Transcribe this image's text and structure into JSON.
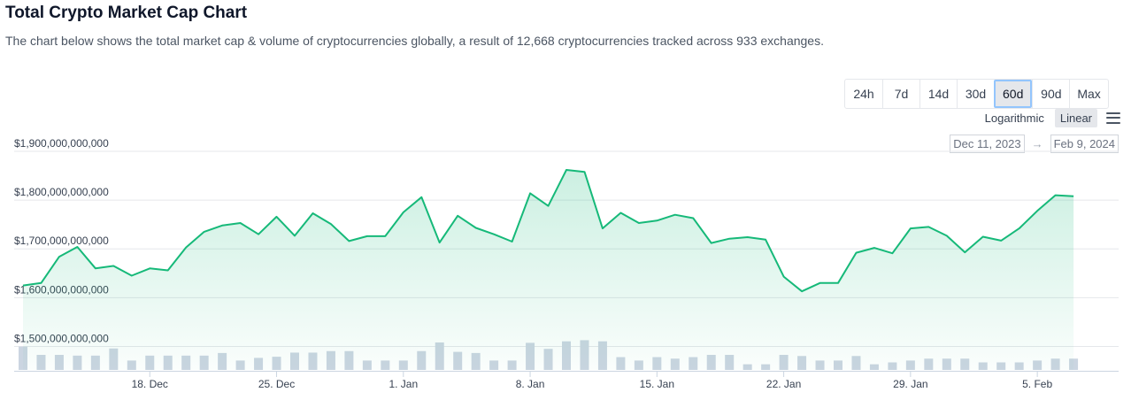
{
  "header": {
    "title": "Total Crypto Market Cap Chart",
    "description": "The chart below shows the total market cap & volume of cryptocurrencies globally, a result of 12,668 cryptocurrencies tracked across 933 exchanges."
  },
  "range_buttons": [
    "24h",
    "7d",
    "14d",
    "30d",
    "60d",
    "90d",
    "Max"
  ],
  "active_range": "60d",
  "scale_options": {
    "log": "Logarithmic",
    "linear": "Linear",
    "active": "Linear"
  },
  "date_range": {
    "from": "Dec 11, 2023",
    "arrow": "→",
    "to": "Feb 9, 2024"
  },
  "colors": {
    "line": "#16b979",
    "volume": "#cbd5e1",
    "grid": "#e5e7eb",
    "active_border": "#93c5fd"
  },
  "chart_data": {
    "type": "area",
    "title": "",
    "xlabel": "",
    "ylabel": "",
    "x_start": "2023-12-11",
    "x_end": "2024-02-09",
    "ylim": [
      1450000000000,
      1920000000000
    ],
    "y_ticks": [
      1500000000000,
      1600000000000,
      1700000000000,
      1800000000000,
      1900000000000
    ],
    "y_tick_labels": [
      "$1,500,000,000,000",
      "$1,600,000,000,000",
      "$1,700,000,000,000",
      "$1,800,000,000,000",
      "$1,900,000,000,000"
    ],
    "x_ticks": [
      "2023-12-18",
      "2023-12-25",
      "2024-01-01",
      "2024-01-08",
      "2024-01-15",
      "2024-01-22",
      "2024-01-29",
      "2024-02-05"
    ],
    "x_tick_labels": [
      "18. Dec",
      "25. Dec",
      "1. Jan",
      "8. Jan",
      "15. Jan",
      "22. Jan",
      "29. Jan",
      "5. Feb"
    ],
    "grid": true,
    "series": [
      {
        "values": [
          [
            "2023-12-11",
            1625000000000
          ],
          [
            "2023-12-12",
            1630000000000
          ],
          [
            "2023-12-13",
            1684000000000
          ],
          [
            "2023-12-14",
            1704000000000
          ],
          [
            "2023-12-15",
            1660000000000
          ],
          [
            "2023-12-16",
            1665000000000
          ],
          [
            "2023-12-17",
            1645000000000
          ],
          [
            "2023-12-18",
            1660000000000
          ],
          [
            "2023-12-19",
            1656000000000
          ],
          [
            "2023-12-20",
            1703000000000
          ],
          [
            "2023-12-21",
            1735000000000
          ],
          [
            "2023-12-22",
            1748000000000
          ],
          [
            "2023-12-23",
            1753000000000
          ],
          [
            "2023-12-24",
            1730000000000
          ],
          [
            "2023-12-25",
            1766000000000
          ],
          [
            "2023-12-26",
            1727000000000
          ],
          [
            "2023-12-27",
            1773000000000
          ],
          [
            "2023-12-28",
            1751000000000
          ],
          [
            "2023-12-29",
            1716000000000
          ],
          [
            "2023-12-30",
            1726000000000
          ],
          [
            "2023-12-31",
            1726000000000
          ],
          [
            "2024-01-01",
            1775000000000
          ],
          [
            "2024-01-02",
            1806000000000
          ],
          [
            "2024-01-03",
            1713000000000
          ],
          [
            "2024-01-04",
            1768000000000
          ],
          [
            "2024-01-05",
            1743000000000
          ],
          [
            "2024-01-06",
            1730000000000
          ],
          [
            "2024-01-07",
            1715000000000
          ],
          [
            "2024-01-08",
            1814000000000
          ],
          [
            "2024-01-09",
            1788000000000
          ],
          [
            "2024-01-10",
            1862000000000
          ],
          [
            "2024-01-11",
            1858000000000
          ],
          [
            "2024-01-12",
            1742000000000
          ],
          [
            "2024-01-13",
            1774000000000
          ],
          [
            "2024-01-14",
            1753000000000
          ],
          [
            "2024-01-15",
            1758000000000
          ],
          [
            "2024-01-16",
            1770000000000
          ],
          [
            "2024-01-17",
            1763000000000
          ],
          [
            "2024-01-18",
            1712000000000
          ],
          [
            "2024-01-19",
            1721000000000
          ],
          [
            "2024-01-20",
            1724000000000
          ],
          [
            "2024-01-21",
            1719000000000
          ],
          [
            "2024-01-22",
            1643000000000
          ],
          [
            "2024-01-23",
            1613000000000
          ],
          [
            "2024-01-24",
            1630000000000
          ],
          [
            "2024-01-25",
            1630000000000
          ],
          [
            "2024-01-26",
            1692000000000
          ],
          [
            "2024-01-27",
            1702000000000
          ],
          [
            "2024-01-28",
            1691000000000
          ],
          [
            "2024-01-29",
            1742000000000
          ],
          [
            "2024-01-30",
            1745000000000
          ],
          [
            "2024-01-31",
            1727000000000
          ],
          [
            "2024-02-01",
            1693000000000
          ],
          [
            "2024-02-02",
            1725000000000
          ],
          [
            "2024-02-03",
            1717000000000
          ],
          [
            "2024-02-04",
            1742000000000
          ],
          [
            "2024-02-05",
            1778000000000
          ],
          [
            "2024-02-06",
            1810000000000
          ],
          [
            "2024-02-07",
            1808000000000
          ]
        ]
      }
    ],
    "volume": [
      [
        "2023-12-11",
        62
      ],
      [
        "2023-12-12",
        40
      ],
      [
        "2023-12-13",
        40
      ],
      [
        "2023-12-14",
        38
      ],
      [
        "2023-12-15",
        38
      ],
      [
        "2023-12-16",
        57
      ],
      [
        "2023-12-17",
        25
      ],
      [
        "2023-12-18",
        38
      ],
      [
        "2023-12-19",
        38
      ],
      [
        "2023-12-20",
        38
      ],
      [
        "2023-12-21",
        38
      ],
      [
        "2023-12-22",
        45
      ],
      [
        "2023-12-23",
        25
      ],
      [
        "2023-12-24",
        32
      ],
      [
        "2023-12-25",
        35
      ],
      [
        "2023-12-26",
        46
      ],
      [
        "2023-12-27",
        46
      ],
      [
        "2023-12-28",
        50
      ],
      [
        "2023-12-29",
        50
      ],
      [
        "2023-12-30",
        25
      ],
      [
        "2023-12-31",
        25
      ],
      [
        "2024-01-01",
        25
      ],
      [
        "2024-01-02",
        50
      ],
      [
        "2024-01-03",
        73
      ],
      [
        "2024-01-04",
        48
      ],
      [
        "2024-01-05",
        45
      ],
      [
        "2024-01-06",
        25
      ],
      [
        "2024-01-07",
        25
      ],
      [
        "2024-01-08",
        72
      ],
      [
        "2024-01-09",
        56
      ],
      [
        "2024-01-10",
        76
      ],
      [
        "2024-01-11",
        79
      ],
      [
        "2024-01-12",
        76
      ],
      [
        "2024-01-13",
        34
      ],
      [
        "2024-01-14",
        25
      ],
      [
        "2024-01-15",
        34
      ],
      [
        "2024-01-16",
        30
      ],
      [
        "2024-01-17",
        34
      ],
      [
        "2024-01-18",
        40
      ],
      [
        "2024-01-19",
        40
      ],
      [
        "2024-01-20",
        15
      ],
      [
        "2024-01-21",
        15
      ],
      [
        "2024-01-22",
        40
      ],
      [
        "2024-01-23",
        37
      ],
      [
        "2024-01-24",
        25
      ],
      [
        "2024-01-25",
        25
      ],
      [
        "2024-01-26",
        37
      ],
      [
        "2024-01-27",
        15
      ],
      [
        "2024-01-28",
        20
      ],
      [
        "2024-01-29",
        25
      ],
      [
        "2024-01-30",
        30
      ],
      [
        "2024-01-31",
        30
      ],
      [
        "2024-02-01",
        30
      ],
      [
        "2024-02-02",
        20
      ],
      [
        "2024-02-03",
        20
      ],
      [
        "2024-02-04",
        20
      ],
      [
        "2024-02-05",
        25
      ],
      [
        "2024-02-06",
        30
      ],
      [
        "2024-02-07",
        30
      ]
    ]
  }
}
